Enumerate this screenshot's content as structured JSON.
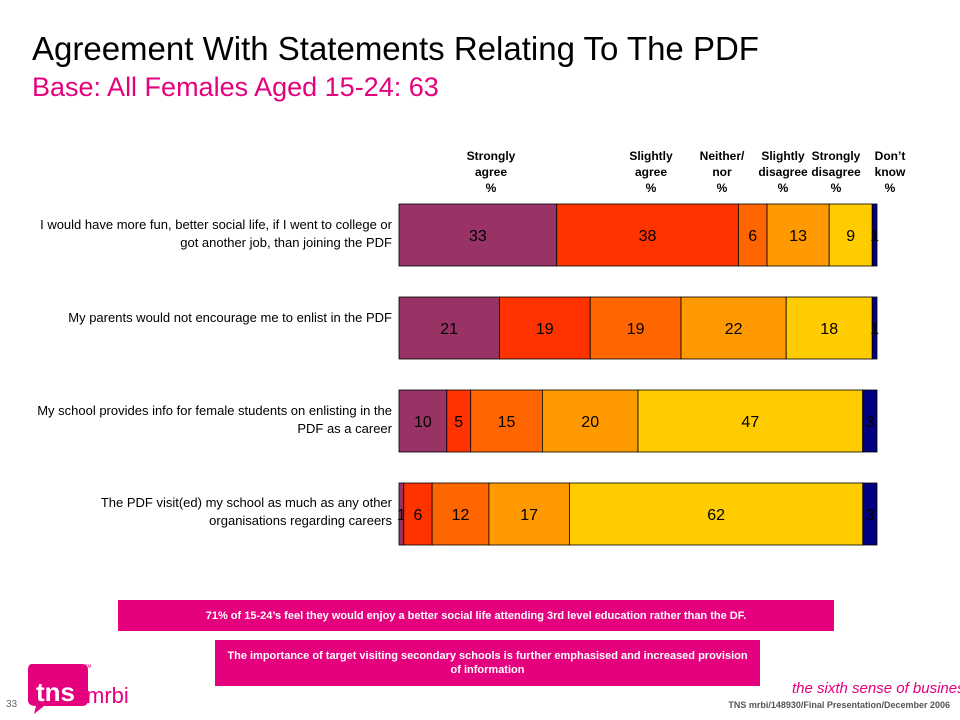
{
  "slide": {
    "title": "Agreement With Statements Relating To The PDF",
    "subtitle": "Base:  All Females Aged 15-24: 63",
    "page_number": "33",
    "footer": "TNS mrbi/148930/Final Presentation/December 2006",
    "tagline": "the sixth sense of business",
    "tagline_tm": "™",
    "logo_main": "tns",
    "logo_sub": "mrbi",
    "logo_tm": "™"
  },
  "column_headers": [
    {
      "l1": "Strongly",
      "l2": "agree",
      "l3": "%"
    },
    {
      "l1": "Slightly",
      "l2": "agree",
      "l3": "%"
    },
    {
      "l1": "Neither/",
      "l2": "nor",
      "l3": "%"
    },
    {
      "l1": "Slightly",
      "l2": "disagree",
      "l3": "%"
    },
    {
      "l1": "Strongly",
      "l2": "disagree",
      "l3": "%"
    },
    {
      "l1": "Don’t",
      "l2": "know",
      "l3": "%"
    }
  ],
  "chart_data": {
    "type": "bar",
    "orientation": "horizontal-stacked-100",
    "categories": [
      "I would have more fun, better social life, if I went to college or got another job, than joining the PDF",
      "My parents would not encourage me to enlist in the PDF",
      "My school provides info for female students on enlisting in the PDF as a career",
      "The PDF visit(ed) my school as much as any other organisations regarding careers"
    ],
    "series": [
      {
        "name": "Strongly agree %",
        "color": "#993366",
        "values": [
          33,
          21,
          10,
          1
        ]
      },
      {
        "name": "Slightly agree %",
        "color": "#ff3300",
        "values": [
          38,
          19,
          5,
          6
        ]
      },
      {
        "name": "Neither/ nor %",
        "color": "#ff6600",
        "values": [
          6,
          19,
          15,
          12
        ]
      },
      {
        "name": "Slightly disagree %",
        "color": "#ff9900",
        "values": [
          13,
          22,
          20,
          17
        ]
      },
      {
        "name": "Strongly disagree %",
        "color": "#ffcc00",
        "values": [
          9,
          18,
          47,
          62
        ]
      },
      {
        "name": "Don’t know %",
        "color": "#000080",
        "values": [
          1,
          1,
          3,
          3
        ]
      }
    ]
  },
  "callouts": {
    "first": "71% of 15-24’s feel they would enjoy a better social life attending 3rd level education rather than the DF.",
    "second": "The importance of target visiting secondary schools is further emphasised and increased provision of information"
  }
}
